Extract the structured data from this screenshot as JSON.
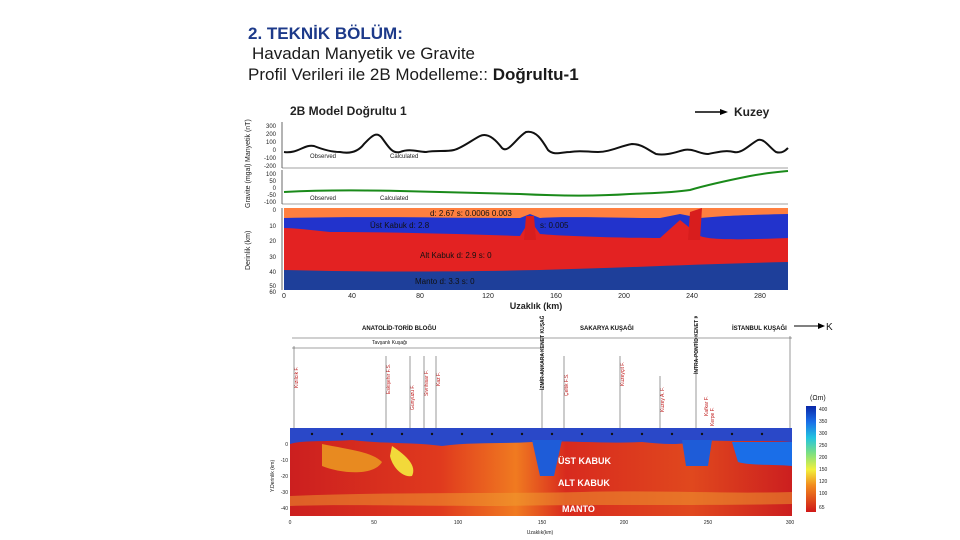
{
  "slide": {
    "heading": "2. TEKNİK BÖLÜM:",
    "line1": "Havadan Manyetik ve Gravite",
    "line2_prefix": "Profil Verileri ile 2B Modelleme:: ",
    "line2_bold": "Doğrultu-1"
  },
  "figure1": {
    "title": "2B Model Doğrultu 1",
    "direction": "Kuzey",
    "mag_ylabel": "Manyetik (nT)",
    "mag_ticks": [
      "300",
      "200",
      "100",
      "0",
      "-100",
      "-200"
    ],
    "mag_legend": [
      "Observed",
      "Calculated"
    ],
    "grav_ylabel": "Gravite (mgal)",
    "grav_ticks": [
      "100",
      "50",
      "0",
      "-50",
      "-100"
    ],
    "grav_legend": [
      "Observed",
      "Calculated"
    ],
    "depth_ylabel": "Derinlik (km)",
    "depth_ticks": [
      "0",
      "10",
      "20",
      "30",
      "40",
      "50",
      "60"
    ],
    "layer_labels": [
      "d: 2.67   s: 0.0006    0.003",
      "Üst Kabuk  d: 2.8",
      "s: 0.005",
      "Alt Kabuk  d: 2.9   s: 0",
      "Manto d: 3.3       s: 0"
    ],
    "x_ticks": [
      "0",
      "40",
      "80",
      "120",
      "160",
      "200",
      "240",
      "280"
    ],
    "xlabel": "Uzaklık (km)"
  },
  "figure2": {
    "direction": "K",
    "zones": [
      "ANATOLİD-TORİD BLOĞU",
      "SAKARYA KUŞAĞI",
      "İSTANBUL KUŞAĞI"
    ],
    "sutures": [
      "İZMİR-ANKARA KENET KUŞAĞI",
      "İNTRA-PONTİD KENET KUŞAĞI"
    ],
    "subzone": "Tavşanlı Kuşağı",
    "faults": [
      "Kızılcık F.",
      "Eskişehir F.S.",
      "Günyüzü F.",
      "Sivrihisar F.",
      "Kaz F.",
      "Çeltik F.S.",
      "Kuzeyçit F.",
      "Kuzey A. F.",
      "Kafkar F.",
      "Kerpe F."
    ],
    "legend_title": "(Ωm)",
    "legend_values": [
      "400",
      "350",
      "300",
      "250",
      "200",
      "150",
      "120",
      "100",
      "65"
    ],
    "crust_labels": [
      "ÜST KABUK",
      "ALT KABUK",
      "MANTO"
    ],
    "ylabel": "Y.Derinlik (km)",
    "y_ticks": [
      "0",
      "-10",
      "-20",
      "-30",
      "-40"
    ],
    "x_ticks": [
      "0",
      "50",
      "100",
      "150",
      "200",
      "250",
      "300"
    ],
    "xlabel": "Uzaklık(km)"
  }
}
